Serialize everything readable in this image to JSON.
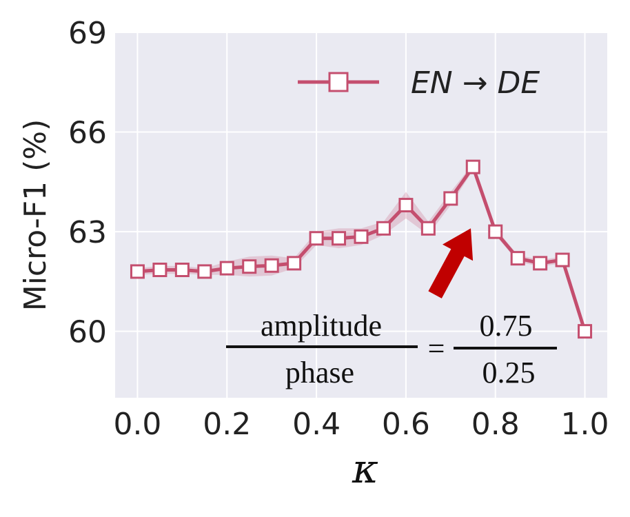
{
  "chart_data": {
    "type": "line",
    "xlabel": "κ",
    "ylabel": "Micro-F1 (%)",
    "xlim": [
      -0.05,
      1.05
    ],
    "ylim": [
      58,
      69
    ],
    "xticks": [
      "0.0",
      "0.2",
      "0.4",
      "0.6",
      "0.8",
      "1.0"
    ],
    "yticks": [
      "60",
      "63",
      "66",
      "69"
    ],
    "grid": true,
    "legend_position": "top-right",
    "series": [
      {
        "name": "EN → DE",
        "color": "#c44e6e",
        "x": [
          0.0,
          0.05,
          0.1,
          0.15,
          0.2,
          0.25,
          0.3,
          0.35,
          0.4,
          0.45,
          0.5,
          0.55,
          0.6,
          0.65,
          0.7,
          0.75,
          0.8,
          0.85,
          0.9,
          0.95,
          1.0
        ],
        "y": [
          61.8,
          61.85,
          61.85,
          61.8,
          61.9,
          61.95,
          61.98,
          62.05,
          62.8,
          62.8,
          62.85,
          63.1,
          63.8,
          63.1,
          64.0,
          64.95,
          63.0,
          62.2,
          62.05,
          62.15,
          60.0
        ],
        "band": [
          0.1,
          0.12,
          0.12,
          0.1,
          0.2,
          0.3,
          0.3,
          0.15,
          0.2,
          0.3,
          0.25,
          0.2,
          0.4,
          0.2,
          0.2,
          0.1,
          0.1,
          0.1,
          0.1,
          0.1,
          0.05
        ]
      }
    ],
    "annotations": {
      "numerator_left": "amplitude",
      "denominator_left": "phase",
      "equals": "=",
      "numerator_right": "0.75",
      "denominator_right": "0.25",
      "arrow_color": "#c00000"
    }
  }
}
